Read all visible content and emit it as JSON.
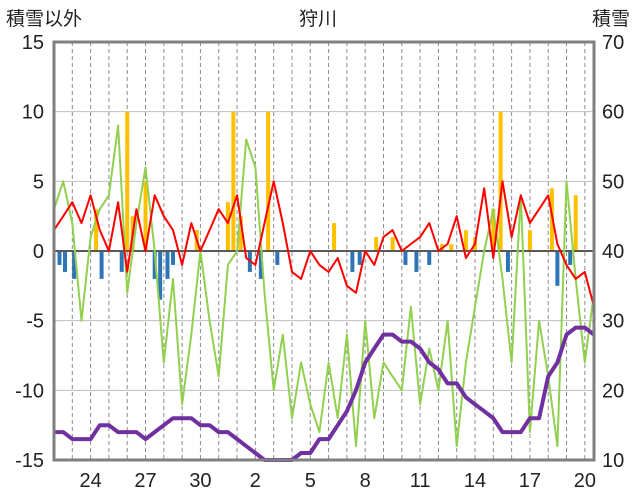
{
  "chart_data": {
    "type": "line",
    "title": "狩川",
    "ylabel_left": "積雪以外",
    "ylabel_right": "積雪",
    "ylim_left": [
      -15,
      15
    ],
    "yticks_left": [
      -15,
      -10,
      -5,
      0,
      5,
      10,
      15
    ],
    "ylim_right": [
      10,
      70
    ],
    "yticks_right": [
      10,
      20,
      30,
      40,
      50,
      60,
      70
    ],
    "xlim": [
      0,
      29.5
    ],
    "xtick_positions": [
      2,
      5,
      8,
      11,
      14,
      17,
      20,
      23,
      26,
      29
    ],
    "xtick_labels": [
      "24",
      "27",
      "30",
      "2",
      "5",
      "8",
      "11",
      "14",
      "17",
      "20"
    ],
    "grid": true,
    "colors": {
      "temperature": "#ff0000",
      "green_series": "#92d050",
      "precip_positive": "#ffc000",
      "precip_negative": "#2e75b6",
      "snow_depth": "#7030a0",
      "frame": "#7f7f7f",
      "zero_line": "#595959"
    },
    "series": [
      {
        "id": "temperature",
        "axis": "left",
        "x": [
          0,
          0.5,
          1,
          1.5,
          2,
          2.5,
          3,
          3.5,
          4,
          4.5,
          5,
          5.5,
          6,
          6.5,
          7,
          7.5,
          8,
          8.5,
          9,
          9.5,
          10,
          10.5,
          11,
          11.5,
          12,
          12.5,
          13,
          13.5,
          14,
          14.5,
          15,
          15.5,
          16,
          16.5,
          17,
          17.5,
          18,
          18.5,
          19,
          19.5,
          20,
          20.5,
          21,
          21.5,
          22,
          22.5,
          23,
          23.5,
          24,
          24.5,
          25,
          25.5,
          26,
          26.5,
          27,
          27.5,
          28,
          28.5,
          29,
          29.5
        ],
        "values": [
          1.5,
          2.5,
          3.5,
          2,
          4,
          1.5,
          0,
          3.5,
          -1.5,
          3,
          0,
          4,
          2.5,
          1.5,
          -1,
          2,
          0,
          1.5,
          3,
          2,
          4,
          -0.5,
          -1,
          2,
          5,
          2,
          -1.5,
          -2,
          0,
          -1,
          -1.5,
          -0.5,
          -2.5,
          -3,
          0,
          -1,
          1,
          1.5,
          0,
          0.5,
          1,
          2,
          0,
          0.5,
          2.5,
          -0.5,
          0.5,
          4.5,
          -0.5,
          5,
          1,
          4,
          2,
          3,
          4,
          0.5,
          -1,
          -2,
          -1.5,
          -4
        ]
      },
      {
        "id": "green_series",
        "axis": "left",
        "x": [
          0,
          0.5,
          1,
          1.5,
          2,
          2.5,
          3,
          3.5,
          4,
          4.5,
          5,
          5.5,
          6,
          6.5,
          7,
          7.5,
          8,
          8.5,
          9,
          9.5,
          10,
          10.5,
          11,
          11.5,
          12,
          12.5,
          13,
          13.5,
          14,
          14.5,
          15,
          15.5,
          16,
          16.5,
          17,
          17.5,
          18,
          18.5,
          19,
          19.5,
          20,
          20.5,
          21,
          21.5,
          22,
          22.5,
          23,
          23.5,
          24,
          24.5,
          25,
          25.5,
          26,
          26.5,
          27,
          27.5,
          28,
          28.5,
          29,
          29.5
        ],
        "values": [
          3,
          5,
          2,
          -5,
          1,
          3,
          4,
          9,
          -3,
          2,
          6,
          0,
          -8,
          -2,
          -11,
          -6,
          0,
          -5,
          -9,
          -1,
          0,
          8,
          6,
          -3,
          -10,
          -6,
          -12,
          -8,
          -11,
          -13,
          -8,
          -12,
          -6,
          -14,
          -5,
          -12,
          -8,
          -9,
          -10,
          -4,
          -11,
          -7,
          -10,
          -5,
          -14,
          -8,
          -4,
          0,
          3,
          -2,
          -8,
          4,
          -13,
          -5,
          -9,
          -14,
          5,
          -2,
          -8,
          -3
        ]
      },
      {
        "id": "snow_depth",
        "axis": "right",
        "x": [
          0,
          0.5,
          1,
          1.5,
          2,
          2.5,
          3,
          3.5,
          4,
          4.5,
          5,
          5.5,
          6,
          6.5,
          7,
          7.5,
          8,
          8.5,
          9,
          9.5,
          10,
          10.5,
          11,
          11.5,
          12,
          12.5,
          13,
          13.5,
          14,
          14.5,
          15,
          15.5,
          16,
          16.5,
          17,
          17.5,
          18,
          18.5,
          19,
          19.5,
          20,
          20.5,
          21,
          21.5,
          22,
          22.5,
          23,
          23.5,
          24,
          24.5,
          25,
          25.5,
          26,
          26.5,
          27,
          27.5,
          28,
          28.5,
          29,
          29.5
        ],
        "values": [
          14,
          14,
          13,
          13,
          13,
          15,
          15,
          14,
          14,
          14,
          13,
          14,
          15,
          16,
          16,
          16,
          15,
          15,
          14,
          14,
          13,
          12,
          11,
          10,
          10,
          10,
          10,
          11,
          11,
          13,
          13,
          15,
          17,
          20,
          24,
          26,
          28,
          28,
          27,
          27,
          26,
          24,
          23,
          21,
          21,
          19,
          18,
          17,
          16,
          14,
          14,
          14,
          16,
          16,
          22,
          24,
          28,
          29,
          29,
          28
        ]
      },
      {
        "id": "precip_positive",
        "axis": "left",
        "type": "bar",
        "x": [
          2.3,
          4,
          4.3,
          5,
          7.8,
          9.5,
          9.8,
          10.2,
          11.7,
          15.3,
          17.6,
          18.5,
          21.2,
          21.7,
          22.5,
          23,
          24,
          24.4,
          26,
          27.2,
          28.5
        ],
        "values": [
          3,
          10,
          2.5,
          5,
          1.5,
          3.5,
          10,
          2.5,
          10,
          2,
          1,
          1,
          0.5,
          0.5,
          1.5,
          1,
          3,
          10,
          1.5,
          4.5,
          4
        ]
      },
      {
        "id": "precip_negative",
        "axis": "left",
        "type": "bar",
        "x": [
          0.3,
          0.6,
          1.1,
          2.6,
          3.7,
          5.5,
          5.8,
          6.2,
          6.5,
          10.7,
          11.3,
          12.2,
          16.3,
          16.7,
          19.2,
          19.8,
          20.5,
          24.8,
          27.5,
          28.2
        ],
        "values": [
          -1,
          -1.5,
          -2,
          -2,
          -1.5,
          -2,
          -3.5,
          -2,
          -1,
          -1.5,
          -2,
          -1,
          -1.5,
          -1,
          -1,
          -1.5,
          -1,
          -1.5,
          -2.5,
          -1
        ]
      }
    ]
  }
}
